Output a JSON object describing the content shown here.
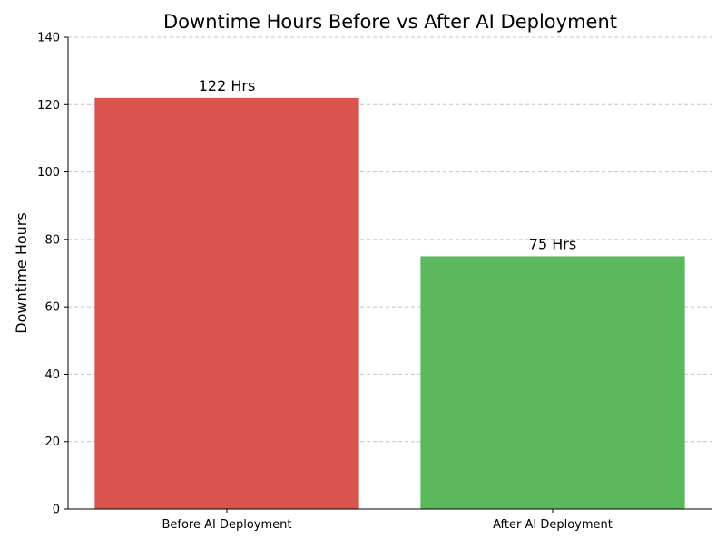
{
  "chart_data": {
    "type": "bar",
    "title": "Downtime Hours Before vs After AI Deployment",
    "xlabel": "",
    "ylabel": "Downtime Hours",
    "categories": [
      "Before AI Deployment",
      "After AI Deployment"
    ],
    "values": [
      122,
      75
    ],
    "data_labels": [
      "122 Hrs",
      "75 Hrs"
    ],
    "colors": [
      "#d9534f",
      "#5cb85c"
    ],
    "ylim": [
      0,
      140
    ],
    "yticks": [
      0,
      20,
      40,
      60,
      80,
      100,
      120,
      140
    ],
    "grid": {
      "y": true,
      "x": false,
      "style": "dashed"
    },
    "legend": "none"
  }
}
